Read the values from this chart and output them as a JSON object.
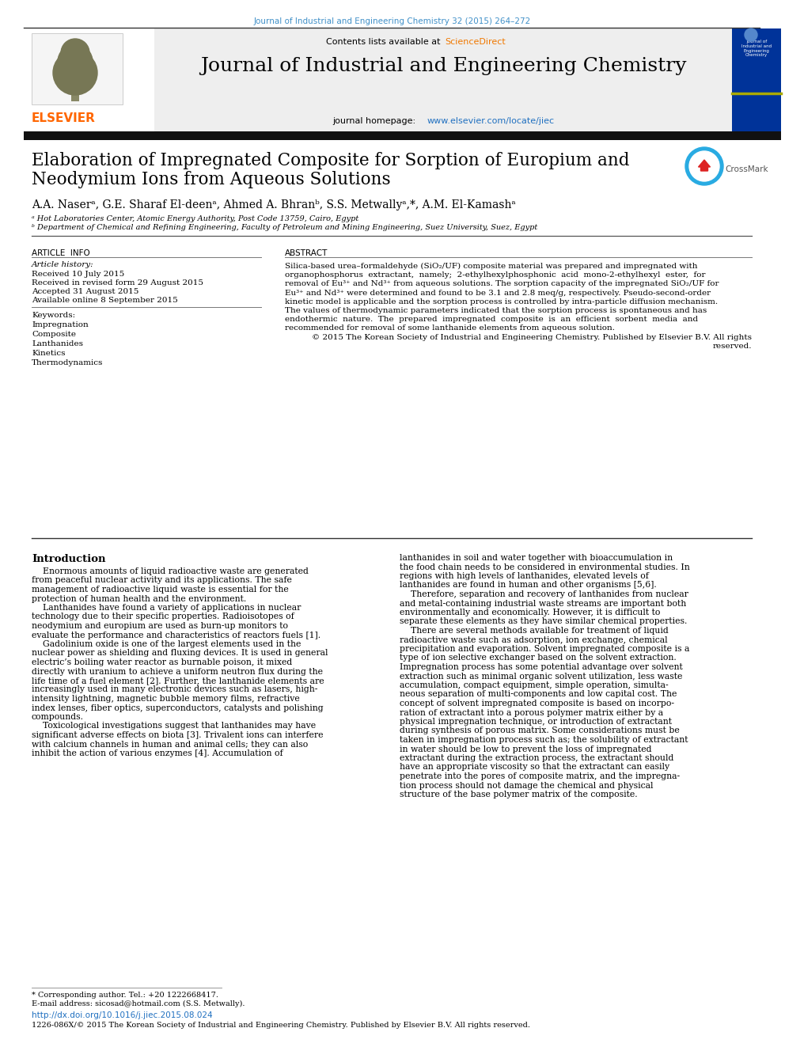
{
  "journal_ref": "Journal of Industrial and Engineering Chemistry 32 (2015) 264–272",
  "journal_name": "Journal of Industrial and Engineering Chemistry",
  "journal_url": "www.elsevier.com/locate/jiec",
  "title_line1": "Elaboration of Impregnated Composite for Sorption of Europium and",
  "title_line2": "Neodymium Ions from Aqueous Solutions",
  "authors": "A.A. Naserᵃ, G.E. Sharaf El-deenᵃ, Ahmed A. Bhranᵇ, S.S. Metwallyᵃ,*, A.M. El-Kamashᵃ",
  "affil_a": "ᵃ Hot Laboratories Center, Atomic Energy Authority, Post Code 13759, Cairo, Egypt",
  "affil_b": "ᵇ Department of Chemical and Refining Engineering, Faculty of Petroleum and Mining Engineering, Suez University, Suez, Egypt",
  "article_info_header": "ARTICLE  INFO",
  "article_history_label": "Article history:",
  "received": "Received 10 July 2015",
  "received_revised": "Received in revised form 29 August 2015",
  "accepted": "Accepted 31 August 2015",
  "available": "Available online 8 September 2015",
  "keywords_label": "Keywords:",
  "keywords": [
    "Impregnation",
    "Composite",
    "Lanthanides",
    "Kinetics",
    "Thermodynamics"
  ],
  "abstract_header": "ABSTRACT",
  "abstract_lines": [
    "Silica-based urea–formaldehyde (SiO₂/UF) composite material was prepared and impregnated with",
    "organophosphorus  extractant,  namely;  2-ethylhexylphosphonic  acid  mono-2-ethylhexyl  ester,  for",
    "removal of Eu³⁺ and Nd³⁺ from aqueous solutions. The sorption capacity of the impregnated SiO₂/UF for",
    "Eu³⁺ and Nd³⁺ were determined and found to be 3.1 and 2.8 meq/g, respectively. Pseudo-second-order",
    "kinetic model is applicable and the sorption process is controlled by intra-particle diffusion mechanism.",
    "The values of thermodynamic parameters indicated that the sorption process is spontaneous and has",
    "endothermic  nature.  The  prepared  impregnated  composite  is  an  efficient  sorbent  media  and",
    "recommended for removal of some lanthanide elements from aqueous solution.",
    "© 2015 The Korean Society of Industrial and Engineering Chemistry. Published by Elsevier B.V. All rights",
    "reserved."
  ],
  "intro_header": "Introduction",
  "intro_c1_lines": [
    "    Enormous amounts of liquid radioactive waste are generated",
    "from peaceful nuclear activity and its applications. The safe",
    "management of radioactive liquid waste is essential for the",
    "protection of human health and the environment.",
    "    Lanthanides have found a variety of applications in nuclear",
    "technology due to their specific properties. Radioisotopes of",
    "neodymium and europium are used as burn-up monitors to",
    "evaluate the performance and characteristics of reactors fuels [1].",
    "    Gadolinium oxide is one of the largest elements used in the",
    "nuclear power as shielding and fluxing devices. It is used in general",
    "electric’s boiling water reactor as burnable poison, it mixed",
    "directly with uranium to achieve a uniform neutron flux during the",
    "life time of a fuel element [2]. Further, the lanthanide elements are",
    "increasingly used in many electronic devices such as lasers, high-",
    "intensity lightning, magnetic bubble memory films, refractive",
    "index lenses, fiber optics, superconductors, catalysts and polishing",
    "compounds.",
    "    Toxicological investigations suggest that lanthanides may have",
    "significant adverse effects on biota [3]. Trivalent ions can interfere",
    "with calcium channels in human and animal cells; they can also",
    "inhibit the action of various enzymes [4]. Accumulation of"
  ],
  "intro_c2_lines": [
    "lanthanides in soil and water together with bioaccumulation in",
    "the food chain needs to be considered in environmental studies. In",
    "regions with high levels of lanthanides, elevated levels of",
    "lanthanides are found in human and other organisms [5,6].",
    "    Therefore, separation and recovery of lanthanides from nuclear",
    "and metal-containing industrial waste streams are important both",
    "environmentally and economically. However, it is difficult to",
    "separate these elements as they have similar chemical properties.",
    "    There are several methods available for treatment of liquid",
    "radioactive waste such as adsorption, ion exchange, chemical",
    "precipitation and evaporation. Solvent impregnated composite is a",
    "type of ion selective exchanger based on the solvent extraction.",
    "Impregnation process has some potential advantage over solvent",
    "extraction such as minimal organic solvent utilization, less waste",
    "accumulation, compact equipment, simple operation, simulta-",
    "neous separation of multi-components and low capital cost. The",
    "concept of solvent impregnated composite is based on incorpo-",
    "ration of extractant into a porous polymer matrix either by a",
    "physical impregnation technique, or introduction of extractant",
    "during synthesis of porous matrix. Some considerations must be",
    "taken in impregnation process such as; the solubility of extractant",
    "in water should be low to prevent the loss of impregnated",
    "extractant during the extraction process, the extractant should",
    "have an appropriate viscosity so that the extractant can easily",
    "penetrate into the pores of composite matrix, and the impregna-",
    "tion process should not damage the chemical and physical",
    "structure of the base polymer matrix of the composite."
  ],
  "footer_line": "* Corresponding author. Tel.: +20 1222668417.",
  "footer_email": "E-mail address: sicosad@hotmail.com (S.S. Metwally).",
  "footer_doi": "http://dx.doi.org/10.1016/j.jiec.2015.08.024",
  "footer_issn": "1226-086X/© 2015 The Korean Society of Industrial and Engineering Chemistry. Published by Elsevier B.V. All rights reserved.",
  "blue_ref": "#4090c8",
  "orange_sd": "#f07800",
  "blue_link": "#2070c0",
  "orange_els": "#FF6600",
  "dark_navy": "#003399"
}
